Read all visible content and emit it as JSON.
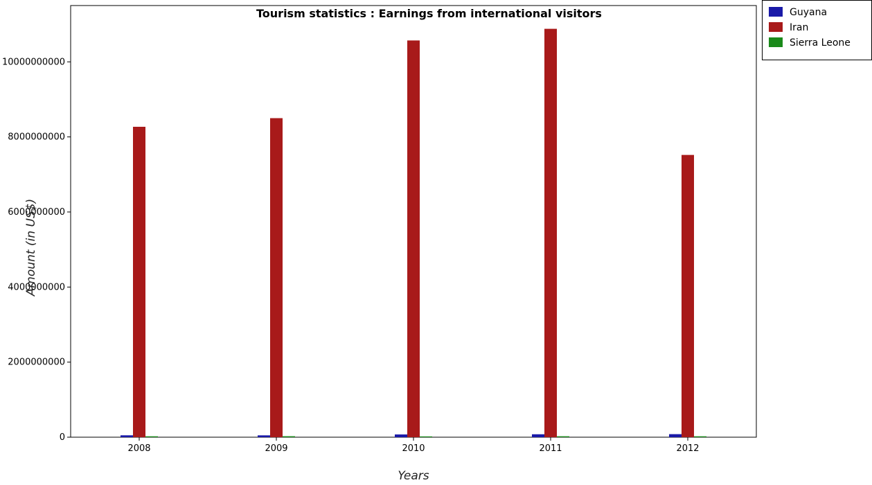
{
  "chart_data": {
    "type": "bar",
    "title": "Tourism statistics : Earnings from international visitors",
    "xlabel": "Years",
    "ylabel": "Amount (in US$)",
    "categories": [
      "2008",
      "2009",
      "2010",
      "2011",
      "2012"
    ],
    "series": [
      {
        "name": "Guyana",
        "color": "#1a1aa8",
        "values": [
          50000000,
          49000000,
          73000000,
          78000000,
          81000000
        ]
      },
      {
        "name": "Iran",
        "color": "#a81a1a",
        "values": [
          8270000000,
          8500000000,
          10570000000,
          10880000000,
          7520000000
        ]
      },
      {
        "name": "Sierra Leone",
        "color": "#1a8a1a",
        "values": [
          24000000,
          26000000,
          21000000,
          25000000,
          24000000
        ]
      }
    ],
    "ylim": [
      0,
      11500000000
    ],
    "yticks": [
      0,
      2000000000,
      4000000000,
      6000000000,
      8000000000,
      10000000000
    ],
    "ytick_labels": [
      "0",
      "2000000000",
      "4000000000",
      "6000000000",
      "8000000000",
      "10000000000"
    ],
    "grid": false,
    "legend_position": "top-right"
  }
}
